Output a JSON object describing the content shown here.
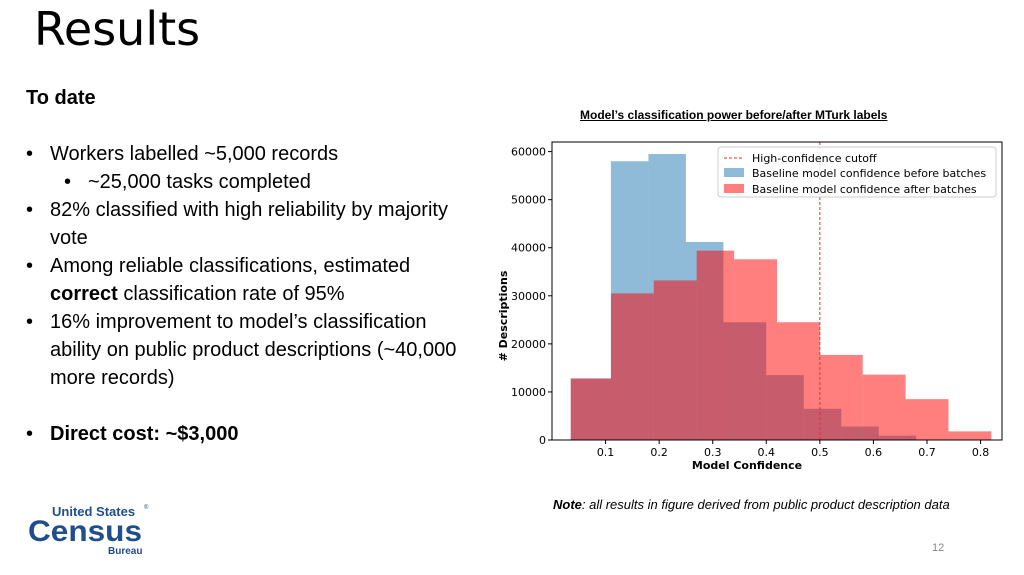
{
  "slide": {
    "title": "Results",
    "page_number": "12"
  },
  "body": {
    "heading": "To date",
    "bullet1": "Workers labelled ~5,000 records",
    "bullet1_sub": "~25,000 tasks completed",
    "bullet2": "82% classified with high reliability by majority vote",
    "bullet3_pre": "Among reliable classifications, estimated ",
    "bullet3_bold": "correct",
    "bullet3_post": " classification rate of 95%",
    "bullet4": "16% improvement to model’s classification ability on public product descriptions (~40,000 more records)",
    "bullet5": "Direct cost: ~$3,000"
  },
  "note": {
    "label": "Note",
    "text": ": all results in figure derived from public product description data"
  },
  "logo": {
    "line1": "United States",
    "line2": "Census",
    "line3": "Bureau",
    "registered": "®",
    "color": "#1f4e8c"
  },
  "chart_data": {
    "type": "histogram",
    "title": "Model’s classification power before/after MTurk labels",
    "xlabel": "Model Confidence",
    "ylabel": "# Descriptions",
    "xlim": [
      0.0,
      0.84
    ],
    "ylim": [
      0,
      62000
    ],
    "xticks": [
      0.1,
      0.2,
      0.3,
      0.4,
      0.5,
      0.6,
      0.7,
      0.8
    ],
    "yticks": [
      0,
      10000,
      20000,
      30000,
      40000,
      50000,
      60000
    ],
    "legend_position": "top-right",
    "cutoff": {
      "name": "High-confidence cutoff",
      "x": 0.5,
      "color": "#e03030"
    },
    "series": [
      {
        "name": "Baseline model confidence before batches",
        "color": "#1f77b4",
        "opacity": 0.5,
        "bins": [
          {
            "x0": 0.035,
            "x1": 0.11,
            "y": 12800
          },
          {
            "x0": 0.11,
            "x1": 0.18,
            "y": 58000
          },
          {
            "x0": 0.18,
            "x1": 0.25,
            "y": 59500
          },
          {
            "x0": 0.25,
            "x1": 0.32,
            "y": 41200
          },
          {
            "x0": 0.32,
            "x1": 0.4,
            "y": 24500
          },
          {
            "x0": 0.4,
            "x1": 0.47,
            "y": 13500
          },
          {
            "x0": 0.47,
            "x1": 0.54,
            "y": 6500
          },
          {
            "x0": 0.54,
            "x1": 0.61,
            "y": 2800
          },
          {
            "x0": 0.61,
            "x1": 0.68,
            "y": 900
          }
        ]
      },
      {
        "name": "Baseline model confidence after batches",
        "color": "#ff0000",
        "opacity": 0.5,
        "bins": [
          {
            "x0": 0.035,
            "x1": 0.11,
            "y": 12800
          },
          {
            "x0": 0.11,
            "x1": 0.19,
            "y": 30500
          },
          {
            "x0": 0.19,
            "x1": 0.27,
            "y": 33200
          },
          {
            "x0": 0.27,
            "x1": 0.34,
            "y": 39400
          },
          {
            "x0": 0.34,
            "x1": 0.42,
            "y": 37600
          },
          {
            "x0": 0.42,
            "x1": 0.5,
            "y": 24500
          },
          {
            "x0": 0.5,
            "x1": 0.58,
            "y": 17700
          },
          {
            "x0": 0.58,
            "x1": 0.66,
            "y": 13600
          },
          {
            "x0": 0.66,
            "x1": 0.74,
            "y": 8500
          },
          {
            "x0": 0.74,
            "x1": 0.82,
            "y": 1800
          }
        ]
      }
    ]
  }
}
